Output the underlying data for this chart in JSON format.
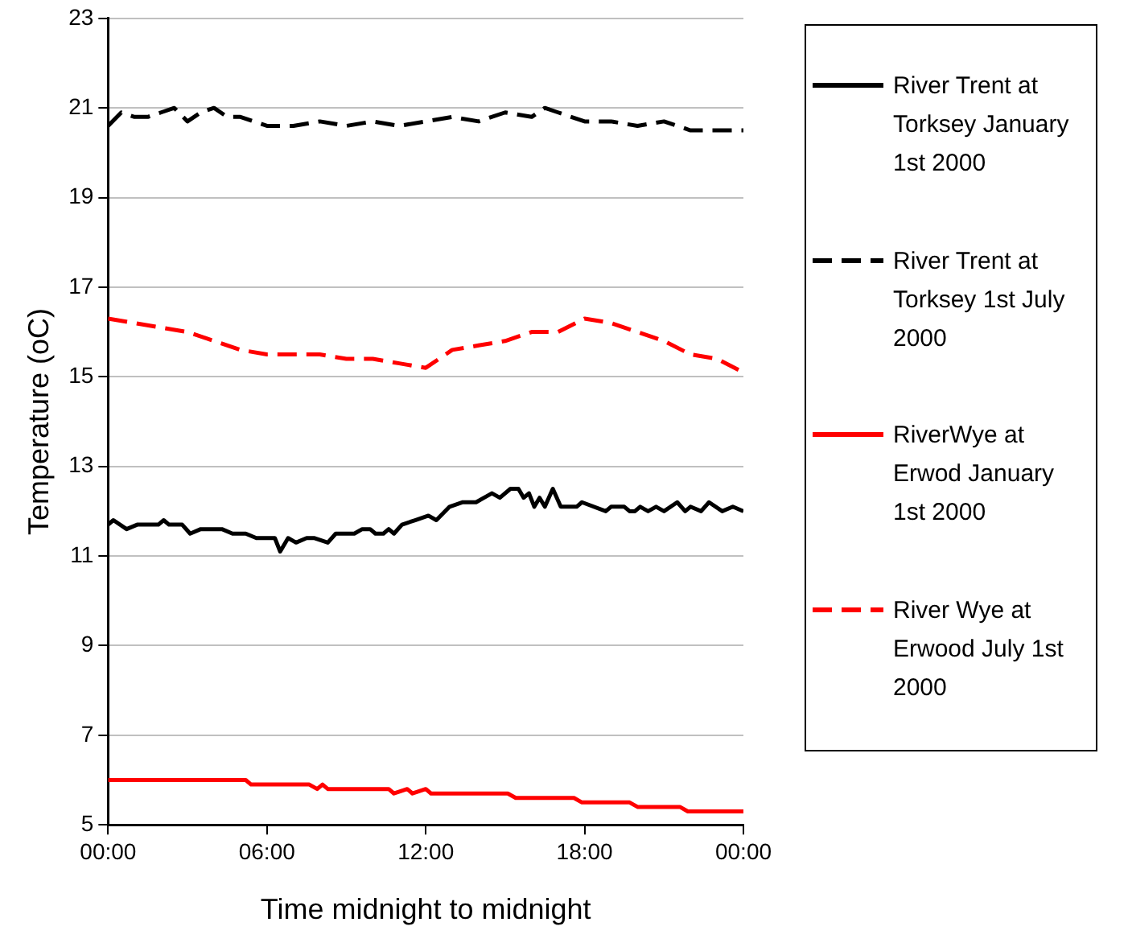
{
  "chart_data": {
    "type": "line",
    "xlabel": "Time midnight to midnight",
    "ylabel": "Temperature (oC)",
    "xlim": [
      0,
      24
    ],
    "xticks": [
      {
        "value": 0,
        "label": "00:00"
      },
      {
        "value": 6,
        "label": "06:00"
      },
      {
        "value": 12,
        "label": "12:00"
      },
      {
        "value": 18,
        "label": "18:00"
      },
      {
        "value": 24,
        "label": "00:00"
      }
    ],
    "ylim": [
      5,
      23
    ],
    "yticks": [
      5,
      7,
      9,
      11,
      13,
      15,
      17,
      19,
      21,
      23
    ],
    "grid": "y",
    "legend": "right",
    "marker": "none",
    "series": [
      {
        "name": "River Trent at Torksey January 1st 2000",
        "color": "#000000",
        "line_style": "solid",
        "x": [
          0,
          0.2,
          0.7,
          1.1,
          1.9,
          2.1,
          2.3,
          2.8,
          3.1,
          3.5,
          4.3,
          4.7,
          5.2,
          5.6,
          5.8,
          6.3,
          6.5,
          6.8,
          7.1,
          7.5,
          7.8,
          8.3,
          8.6,
          9.3,
          9.6,
          9.9,
          10.1,
          10.4,
          10.6,
          10.8,
          11.1,
          11.6,
          12.1,
          12.4,
          12.9,
          13.4,
          13.9,
          14.2,
          14.5,
          14.8,
          15.2,
          15.5,
          15.7,
          15.9,
          16.1,
          16.3,
          16.5,
          16.8,
          17.1,
          17.7,
          17.9,
          18.8,
          19,
          19.5,
          19.7,
          19.9,
          20.1,
          20.4,
          20.7,
          21,
          21.5,
          21.8,
          22,
          22.4,
          22.7,
          23.2,
          23.6,
          24
        ],
        "values": [
          11.7,
          11.8,
          11.6,
          11.7,
          11.7,
          11.8,
          11.7,
          11.7,
          11.5,
          11.6,
          11.6,
          11.5,
          11.5,
          11.4,
          11.4,
          11.4,
          11.1,
          11.4,
          11.3,
          11.4,
          11.4,
          11.3,
          11.5,
          11.5,
          11.6,
          11.6,
          11.5,
          11.5,
          11.6,
          11.5,
          11.7,
          11.8,
          11.9,
          11.8,
          12.1,
          12.2,
          12.2,
          12.3,
          12.4,
          12.3,
          12.5,
          12.5,
          12.3,
          12.4,
          12.1,
          12.3,
          12.1,
          12.5,
          12.1,
          12.1,
          12.2,
          12,
          12.1,
          12.1,
          12,
          12,
          12.1,
          12,
          12.1,
          12,
          12.2,
          12,
          12.1,
          12,
          12.2,
          12,
          12.1,
          12
        ]
      },
      {
        "name": "River Trent at Torksey 1st July 2000",
        "color": "#000000",
        "line_style": "dashed",
        "x": [
          0,
          0.5,
          1,
          1.5,
          2,
          2.5,
          3,
          3.5,
          4,
          4.5,
          5,
          5.5,
          6,
          7,
          8,
          9,
          10,
          11,
          12,
          13,
          14,
          15,
          16,
          16.5,
          17,
          18,
          19,
          20,
          21,
          22,
          23,
          24
        ],
        "values": [
          20.6,
          20.9,
          20.8,
          20.8,
          20.9,
          21,
          20.7,
          20.9,
          21,
          20.8,
          20.8,
          20.7,
          20.6,
          20.6,
          20.7,
          20.6,
          20.7,
          20.6,
          20.7,
          20.8,
          20.7,
          20.9,
          20.8,
          21,
          20.9,
          20.7,
          20.7,
          20.6,
          20.7,
          20.5,
          20.5,
          20.5
        ]
      },
      {
        "name": "RiverWye at Erwod January 1st 2000",
        "color": "#ff0000",
        "line_style": "solid",
        "x": [
          0,
          5.2,
          5.4,
          7.6,
          7.9,
          8.1,
          8.3,
          10.6,
          10.8,
          11.3,
          11.5,
          12,
          12.2,
          15.1,
          15.4,
          17.6,
          17.9,
          19.7,
          20,
          21.6,
          21.9,
          24
        ],
        "values": [
          6,
          6,
          5.9,
          5.9,
          5.8,
          5.9,
          5.8,
          5.8,
          5.7,
          5.8,
          5.7,
          5.8,
          5.7,
          5.7,
          5.6,
          5.6,
          5.5,
          5.5,
          5.4,
          5.4,
          5.3,
          5.3
        ]
      },
      {
        "name": "River Wye at Erwood July 1st 2000",
        "color": "#ff0000",
        "line_style": "dashed",
        "x": [
          0,
          1,
          2,
          3,
          4,
          5,
          6,
          7,
          8,
          9,
          10,
          11,
          12,
          13,
          14,
          15,
          16,
          17,
          18,
          19,
          20,
          21,
          22,
          23,
          24
        ],
        "values": [
          16.3,
          16.2,
          16.1,
          16,
          15.8,
          15.6,
          15.5,
          15.5,
          15.5,
          15.4,
          15.4,
          15.3,
          15.2,
          15.6,
          15.7,
          15.8,
          16,
          16,
          16.3,
          16.2,
          16,
          15.8,
          15.5,
          15.4,
          15.1
        ]
      }
    ]
  }
}
